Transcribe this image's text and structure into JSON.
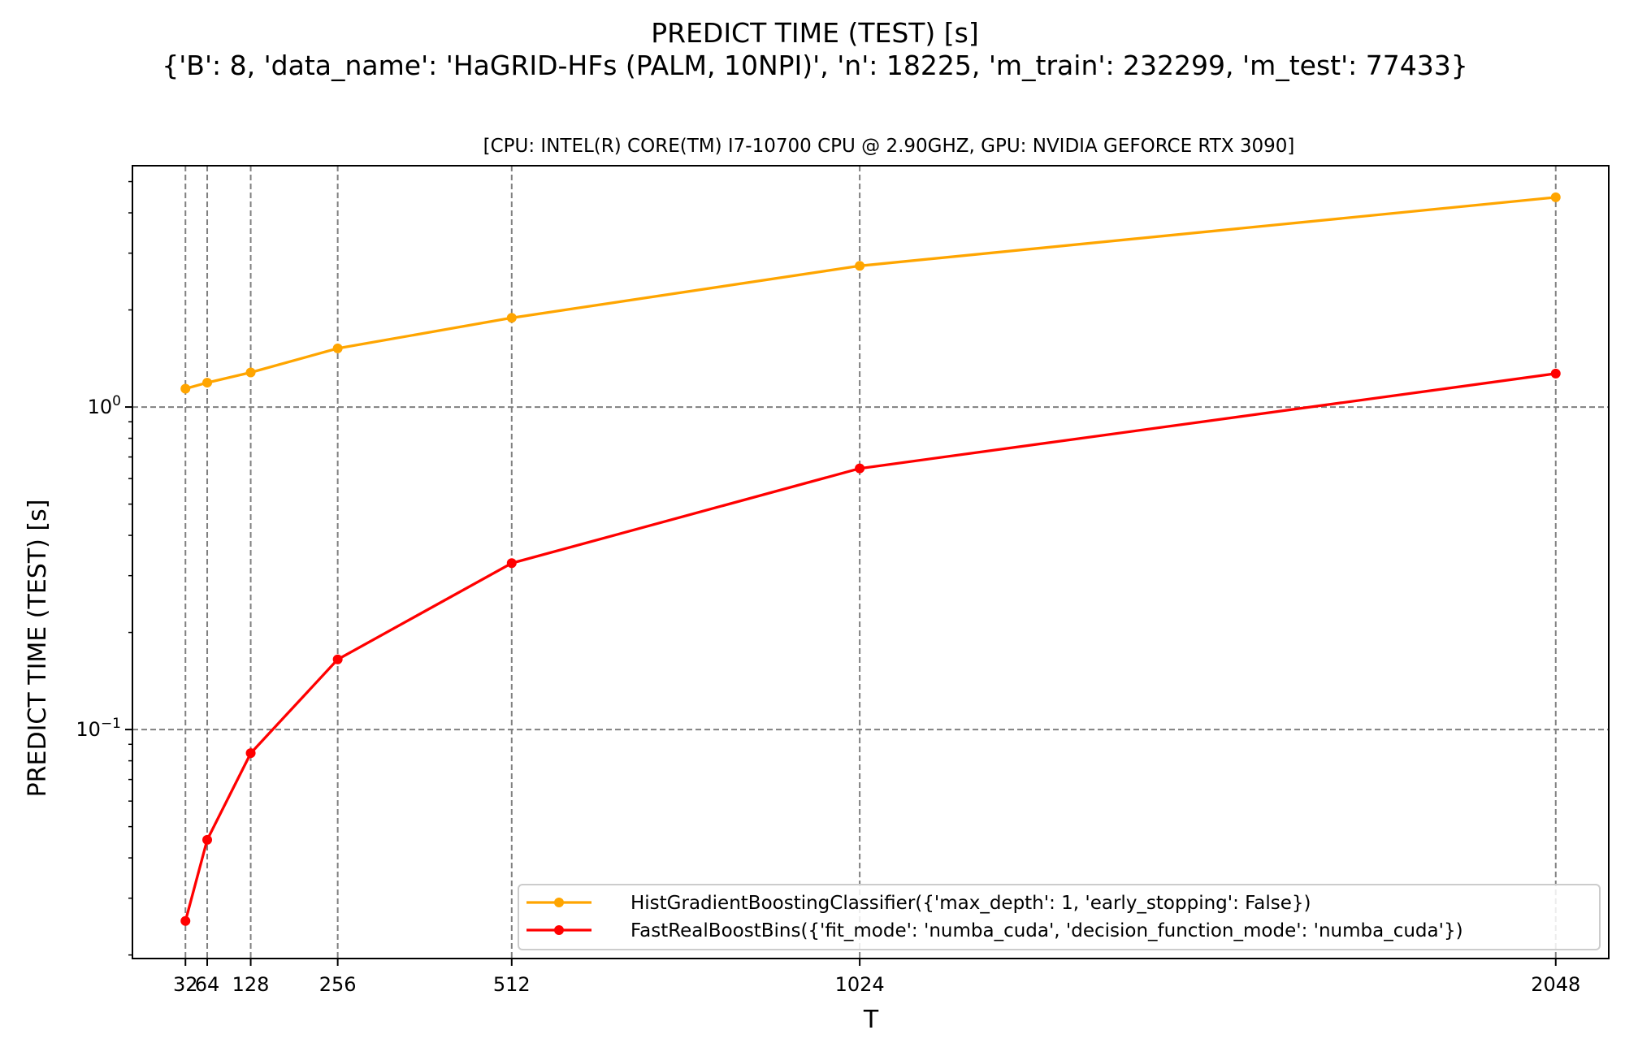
{
  "chart_data": {
    "type": "line",
    "suptitle": "PREDICT TIME (TEST) [s]",
    "subtitle": "{'B': 8, 'data_name': 'HaGRID-HFs (PALM, 10NPI)', 'n': 18225, 'm_train': 232299, 'm_test': 77433}",
    "title": "[CPU: INTEL(R) CORE(TM) I7-10700 CPU @ 2.90GHZ, GPU: NVIDIA GEFORCE RTX 3090]",
    "xlabel": "T",
    "ylabel": "PREDICT TIME (TEST) [s]",
    "yscale": "log",
    "xlim": [
      -46,
      2126
    ],
    "ylim": [
      0.0195,
      5.6
    ],
    "xticks": [
      32,
      64,
      128,
      256,
      512,
      1024,
      2048
    ],
    "xtick_labels": [
      "32",
      "64",
      "128",
      "256",
      "512",
      "1024",
      "2048"
    ],
    "yticks": [
      {
        "value": 1.0,
        "base": "10",
        "exp": "0"
      },
      {
        "value": 0.1,
        "base": "10",
        "exp": "−1"
      }
    ],
    "grid": true,
    "legend_position": "lower right",
    "x": [
      32,
      64,
      128,
      256,
      512,
      1024,
      2048
    ],
    "series": [
      {
        "name": "HistGradientBoostingClassifier({'max_depth': 1, 'early_stopping': False})",
        "color": "#ffa500",
        "values": [
          1.14,
          1.19,
          1.28,
          1.52,
          1.89,
          2.74,
          4.47
        ]
      },
      {
        "name": "FastRealBoostBins({'fit_mode': 'numba_cuda', 'decision_function_mode': 'numba_cuda'})",
        "color": "#ff0000",
        "values": [
          0.0255,
          0.0455,
          0.0845,
          0.165,
          0.328,
          0.645,
          1.27
        ]
      }
    ]
  }
}
